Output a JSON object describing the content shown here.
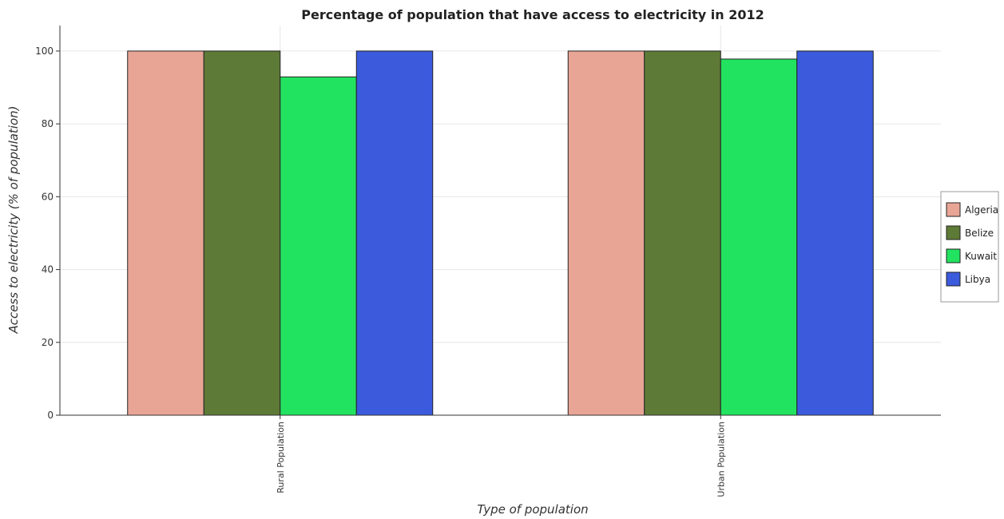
{
  "chart_data": {
    "type": "bar",
    "title": "Percentage of population that have access to electricity in 2012",
    "xlabel": "Type of population",
    "ylabel": "Access to electricity (% of population)",
    "categories": [
      "Rural Population",
      "Urban Population"
    ],
    "ylim": [
      0,
      107
    ],
    "yticks": [
      0,
      20,
      40,
      60,
      80,
      100
    ],
    "grid": true,
    "legend_position": "right",
    "series": [
      {
        "name": "Algeria",
        "color": "#e8a596",
        "values": [
          100,
          100
        ]
      },
      {
        "name": "Belize",
        "color": "#5e7a37",
        "values": [
          100,
          100
        ]
      },
      {
        "name": "Kuwait",
        "color": "#22e35f",
        "values": [
          92.9,
          97.8
        ]
      },
      {
        "name": "Libya",
        "color": "#3b5bdc",
        "values": [
          100,
          100
        ]
      }
    ]
  }
}
